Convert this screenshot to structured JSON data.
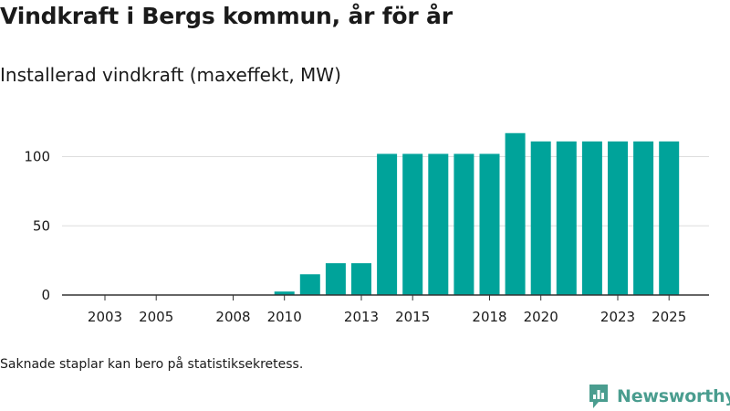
{
  "header": {
    "title": "Vindkraft i Bergs kommun, år för år",
    "subtitle": "Installerad vindkraft (maxeffekt, MW)"
  },
  "footer": {
    "note": "Saknade staplar kan bero på statistiksekretess.",
    "brand": "Newsworthy"
  },
  "colors": {
    "bar": "#00a39a",
    "grid": "#dddddd",
    "axis": "#333333",
    "brand": "#4a9d8f"
  },
  "chart_data": {
    "type": "bar",
    "title": "Vindkraft i Bergs kommun, år för år",
    "subtitle": "Installerad vindkraft (maxeffekt, MW)",
    "xlabel": "",
    "ylabel": "",
    "categories": [
      "2003",
      "2004",
      "2005",
      "2006",
      "2007",
      "2008",
      "2009",
      "2010",
      "2011",
      "2012",
      "2013",
      "2014",
      "2015",
      "2016",
      "2017",
      "2018",
      "2019",
      "2020",
      "2021",
      "2022",
      "2023",
      "2024",
      "2025"
    ],
    "values": [
      0,
      0,
      0,
      0,
      0,
      0,
      0,
      2.5,
      15,
      23,
      23,
      102,
      102,
      102,
      102,
      102,
      117,
      111,
      111,
      111,
      111,
      111,
      111
    ],
    "xticks": [
      "2003",
      "2005",
      "2008",
      "2010",
      "2013",
      "2015",
      "2018",
      "2020",
      "2023",
      "2025"
    ],
    "yticks": [
      0,
      50,
      100
    ],
    "ylim": [
      0,
      125
    ],
    "grid": true
  }
}
